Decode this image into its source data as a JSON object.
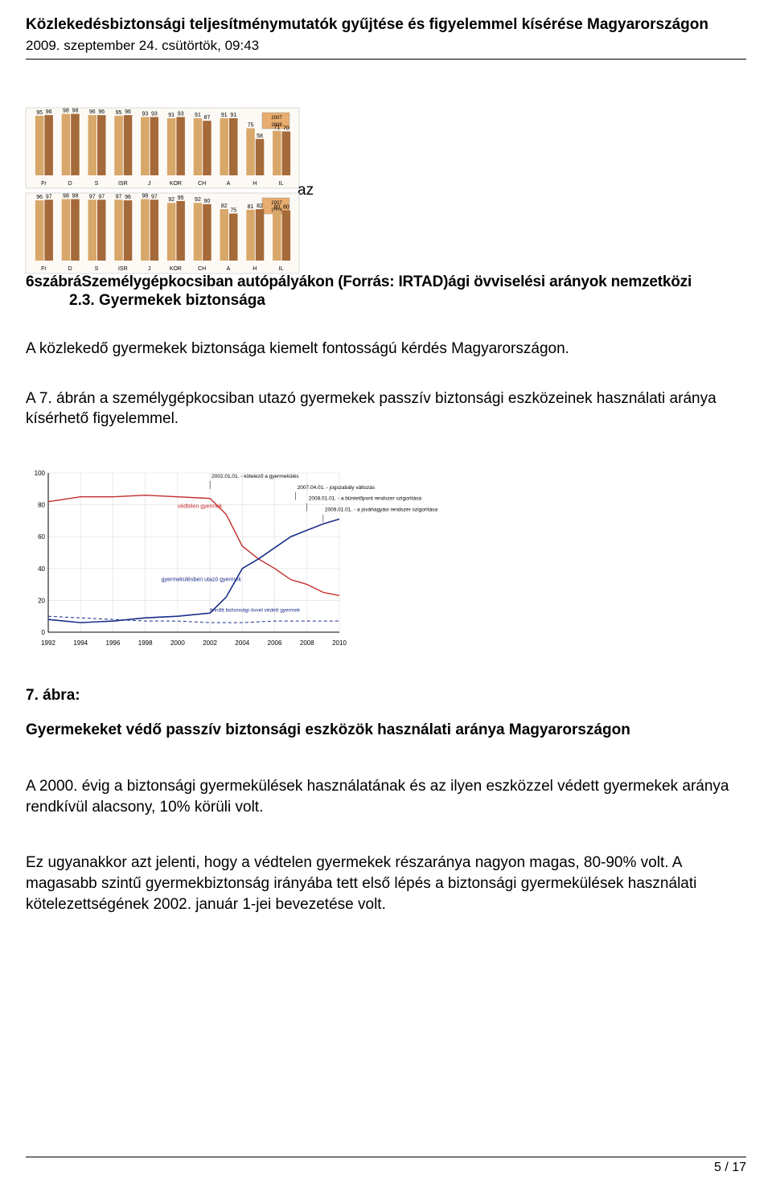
{
  "header": {
    "title": "Közlekedésbiztonsági teljesítménymutatók gyűjtése és figyelemmel kísérése Magyarországon",
    "date": "2009. szeptember 24. csütörtök, 09:43"
  },
  "bar_chart_top": {
    "type": "bar",
    "categories": [
      "Fr",
      "D",
      "S",
      "ISR",
      "J",
      "KOR",
      "CH",
      "A",
      "H",
      "IL"
    ],
    "pairs": [
      [
        95,
        96
      ],
      [
        98,
        98
      ],
      [
        96,
        96
      ],
      [
        95,
        96
      ],
      [
        93,
        93
      ],
      [
        91,
        93
      ],
      [
        91,
        87
      ],
      [
        91,
        91
      ],
      [
        75,
        58
      ],
      [
        71,
        70
      ]
    ],
    "bar_colors": [
      "#d8a76a",
      "#a56a3a"
    ],
    "legend": [
      "2007",
      "2008"
    ],
    "legend_bg": "#e8ad6f",
    "ylim": [
      0,
      100
    ],
    "grid_color": "#d0d0d0",
    "label_fontsize": 7,
    "bg": "#fdfaf5"
  },
  "bar_chart_bottom": {
    "type": "bar",
    "categories": [
      "Fr",
      "D",
      "S",
      "ISR",
      "J",
      "KOR",
      "CH",
      "A",
      "H",
      "IL"
    ],
    "pairs": [
      [
        96,
        97
      ],
      [
        98,
        98
      ],
      [
        97,
        97
      ],
      [
        97,
        96
      ],
      [
        98,
        97
      ],
      [
        92,
        95
      ],
      [
        92,
        90
      ],
      [
        82,
        75
      ],
      [
        81,
        82
      ],
      [
        80,
        80
      ]
    ],
    "bar_colors": [
      "#d8a76a",
      "#a56a3a"
    ],
    "legend": [
      "2007",
      "2008"
    ],
    "legend_bg": "#e8ad6f",
    "ylim": [
      0,
      100
    ],
    "grid_color": "#d0d0d0",
    "label_fontsize": 7,
    "bg": "#fdfaf5"
  },
  "overlap_tail": " az",
  "caption_line1": "Személygépkocsiban autópályákon (Forrás: IRTAD)ági övviselési arányok nemzetközi",
  "caption_line1_prefix": "6szábrá",
  "section_23": "2.3. Gyermekek biztonsága",
  "para1": "A közlekedő gyermekek biztonsága kiemelt fontosságú kérdés Magyarországon.",
  "para2": "A 7. ábrán a személygépkocsiban utazó gyermekek passzív biztonsági eszközeinek használati aránya kísérhető figyelemmel.",
  "line_chart": {
    "type": "line",
    "x_years": [
      1992,
      1994,
      1996,
      1998,
      2000,
      2002,
      2004,
      2006,
      2008,
      2010
    ],
    "ylim": [
      0,
      100
    ],
    "ytick_step": 20,
    "series": [
      {
        "label": "védtelen gyermek",
        "color": "#c22a2a",
        "width": 1.4,
        "points": [
          [
            1992,
            82
          ],
          [
            1994,
            85
          ],
          [
            1996,
            85
          ],
          [
            1998,
            86
          ],
          [
            2000,
            85
          ],
          [
            2002,
            84
          ],
          [
            2003,
            74
          ],
          [
            2004,
            54
          ],
          [
            2005,
            46
          ],
          [
            2006,
            40
          ],
          [
            2007,
            33
          ],
          [
            2008,
            30
          ],
          [
            2009,
            25
          ],
          [
            2010,
            23
          ]
        ]
      },
      {
        "label": "gyermekülésben utazó gyermek",
        "color": "#1a2d8a",
        "width": 1.6,
        "points": [
          [
            1992,
            8
          ],
          [
            1994,
            6
          ],
          [
            1996,
            7
          ],
          [
            1998,
            9
          ],
          [
            2000,
            10
          ],
          [
            2002,
            12
          ],
          [
            2003,
            22
          ],
          [
            2004,
            40
          ],
          [
            2005,
            46
          ],
          [
            2006,
            53
          ],
          [
            2007,
            60
          ],
          [
            2008,
            64
          ],
          [
            2009,
            68
          ],
          [
            2010,
            71
          ]
        ]
      },
      {
        "label": "felnőtt biztonsági övvel védett gyermek",
        "color": "#1a2d8a",
        "width": 1.0,
        "dash": true,
        "points": [
          [
            1992,
            10
          ],
          [
            1994,
            9
          ],
          [
            1996,
            8
          ],
          [
            1998,
            7
          ],
          [
            2000,
            7
          ],
          [
            2002,
            6
          ],
          [
            2004,
            6
          ],
          [
            2006,
            7
          ],
          [
            2008,
            7
          ],
          [
            2010,
            7
          ]
        ]
      }
    ],
    "annotations": [
      {
        "x": 2002,
        "y": 97,
        "text": "2002.01.01. - kötelező a gyermekülés",
        "color": "#000"
      },
      {
        "x": 2007.3,
        "y": 90,
        "text": "2007.04.01. - jogszabály változás",
        "color": "#000"
      },
      {
        "x": 2008,
        "y": 83,
        "text": "2008.01.01. - a büntetőpont rendszer szigorítása",
        "color": "#000"
      },
      {
        "x": 2009,
        "y": 76,
        "text": "2009.01.01. - a jóváhagyási rendszer szigorítása",
        "color": "#000"
      }
    ],
    "label_fontsize": 8,
    "axis_fontsize": 8,
    "grid_color": "#dddddd",
    "bg": "#ffffff"
  },
  "fig7_label": "7. ábra:",
  "fig7_title": "Gyermekeket védő passzív biztonsági eszközök használati aránya Magyarországon",
  "para3": "A 2000. évig a biztonsági gyermekülések használatának és az ilyen eszközzel védett gyermekek aránya rendkívül alacsony, 10% körüli volt.",
  "para4": "Ez ugyanakkor azt jelenti, hogy a védtelen gyermekek részaránya nagyon magas, 80-90% volt. A magasabb szintű gyermekbiztonság irányába tett első lépés a biztonsági gyermekülések használati kötelezettségének 2002.  január 1-jei bevezetése volt.",
  "footer": {
    "page": "5 / 17"
  }
}
